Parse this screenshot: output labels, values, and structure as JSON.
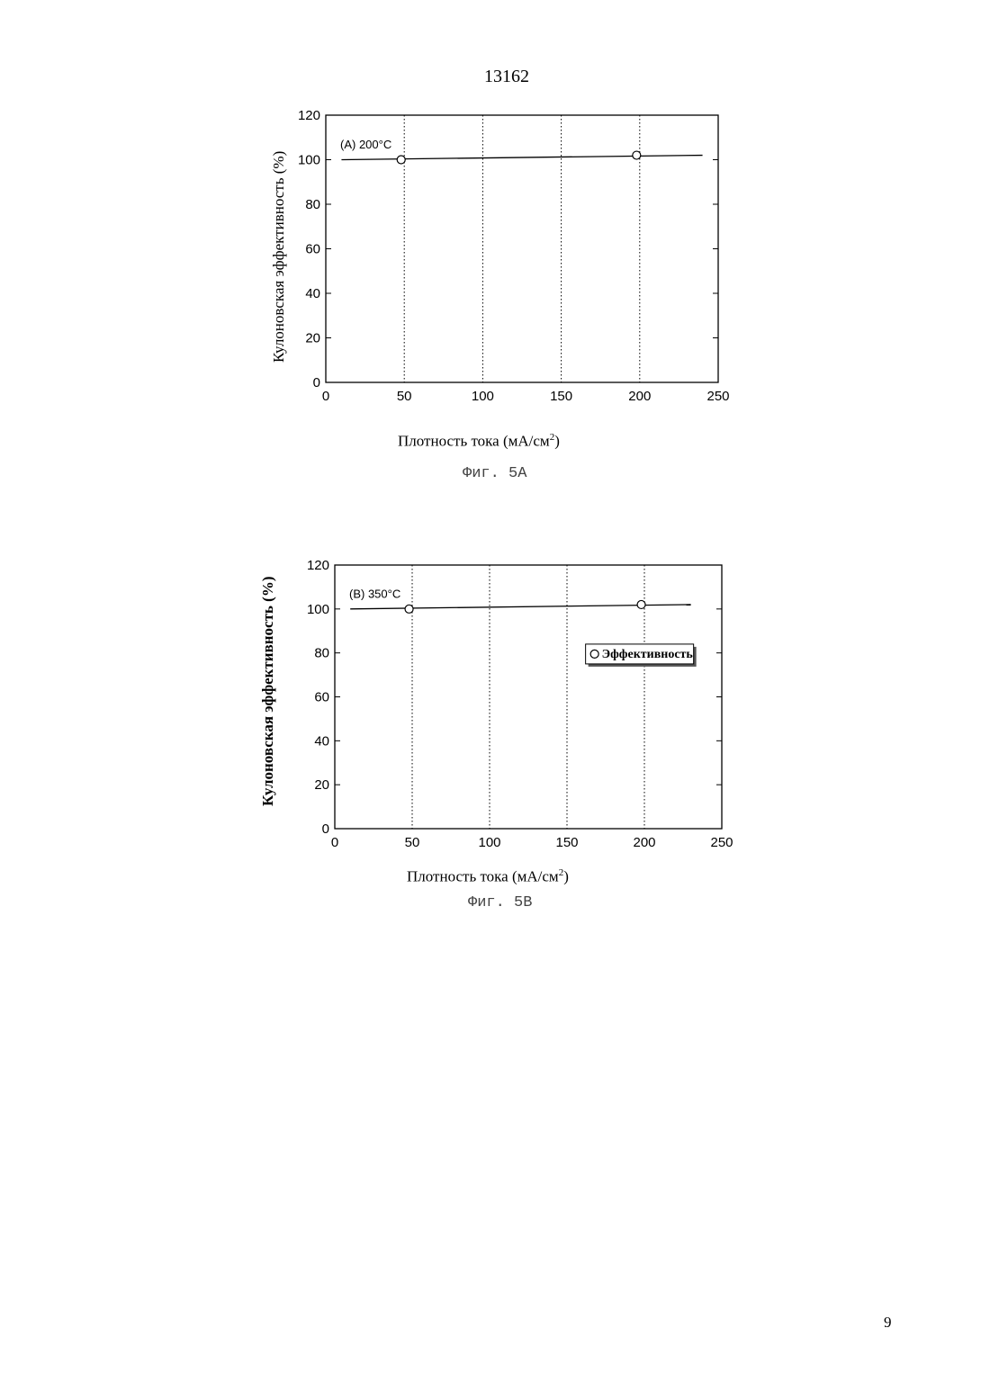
{
  "page": {
    "doc_number": "13162",
    "page_number": "9"
  },
  "chart_data": [
    {
      "type": "scatter",
      "caption": "Фиг. 5А",
      "annotation": "(A) 200°C",
      "xlabel": "Плотность тока (мА/см",
      "xlabel_sup": "2",
      "xlabel_end": ")",
      "ylabel": "Кулоновская эффективность (%)",
      "xlim": [
        0,
        250
      ],
      "ylim": [
        0,
        120
      ],
      "x_ticks": [
        0,
        50,
        100,
        150,
        200,
        250
      ],
      "y_ticks": [
        0,
        20,
        40,
        60,
        80,
        100,
        120
      ],
      "grid": "vertical dotted",
      "fit_line": {
        "x": [
          10,
          240
        ],
        "y": [
          100,
          102
        ]
      },
      "series": [
        {
          "x": [
            48,
            198
          ],
          "y": [
            100,
            102
          ],
          "marker": "circle"
        }
      ]
    },
    {
      "type": "scatter",
      "caption": "Фиг. 5В",
      "annotation": "(B) 350°C",
      "xlabel": "Плотность тока (мА/см",
      "xlabel_sup": "2",
      "xlabel_end": ")",
      "ylabel": "Кулоновская эффективность (%)",
      "xlim": [
        0,
        250
      ],
      "ylim": [
        0,
        120
      ],
      "x_ticks": [
        0,
        50,
        100,
        150,
        200,
        250
      ],
      "y_ticks": [
        0,
        20,
        40,
        60,
        80,
        100,
        120
      ],
      "grid": "vertical dotted",
      "legend": "right",
      "fit_line": {
        "x": [
          10,
          230
        ],
        "y": [
          100,
          102
        ]
      },
      "series": [
        {
          "name": "Эффективность",
          "x": [
            48,
            198
          ],
          "y": [
            100,
            102
          ],
          "marker": "circle"
        }
      ]
    }
  ]
}
